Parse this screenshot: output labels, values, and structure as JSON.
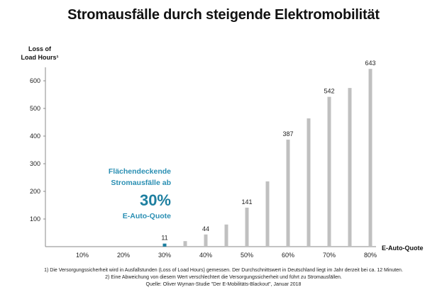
{
  "chart_data": {
    "type": "bar",
    "title": "Stromausfälle durch steigende Elektromobilität",
    "ylabel_line1": "Loss of",
    "ylabel_line2": "Load Hours¹",
    "xlabel": "E-Auto-Quote",
    "ylim": [
      0,
      650
    ],
    "yticks": [
      "100",
      "200",
      "300",
      "400",
      "500",
      "600"
    ],
    "ytick_values": [
      100,
      200,
      300,
      400,
      500,
      600
    ],
    "xticks": [
      "10%",
      "20%",
      "30%",
      "40%",
      "50%",
      "60%",
      "70%",
      "80%"
    ],
    "xtick_values": [
      10,
      20,
      30,
      40,
      50,
      60,
      70,
      80
    ],
    "xlim": [
      0,
      82
    ],
    "grid": false,
    "series": [
      {
        "name": "Loss of Load Hours",
        "x": [
          30,
          35,
          40,
          45,
          50,
          55,
          60,
          65,
          70,
          75,
          80
        ],
        "values": [
          11,
          20,
          44,
          80,
          141,
          236,
          387,
          464,
          542,
          574,
          643
        ],
        "labels": [
          "11",
          "",
          "44",
          "",
          "141",
          "",
          "387",
          "",
          "542",
          "",
          "643"
        ],
        "highlight_index": 0
      }
    ],
    "colors": {
      "bar": "#c0c0c0",
      "highlight": "#1d7fa0",
      "axis": "#888888",
      "annotation": "#2a8fb3"
    },
    "annotation": {
      "line1": "Flächendeckende",
      "line2": "Stromausfälle ab",
      "big": "30%",
      "line3": "E-Auto-Quote"
    }
  },
  "footnotes": {
    "note1": "1)    Die Versorgungssicherheit wird in Ausfallstunden (Loss of Load Hours) gemessen. Der Durchschnittswert in Deutschland liegt im Jahr derzeit bei ca. 12 Minuten.",
    "note2": "2)    Eine Abweichung von diesem Wert verschlechtert die Versorgungssicherheit und führt zu Stromausfällen.",
    "source": "Quelle: Oliver Wyman-Studie \"Der E-Mobilitäts-Blackout\", Januar 2018"
  }
}
